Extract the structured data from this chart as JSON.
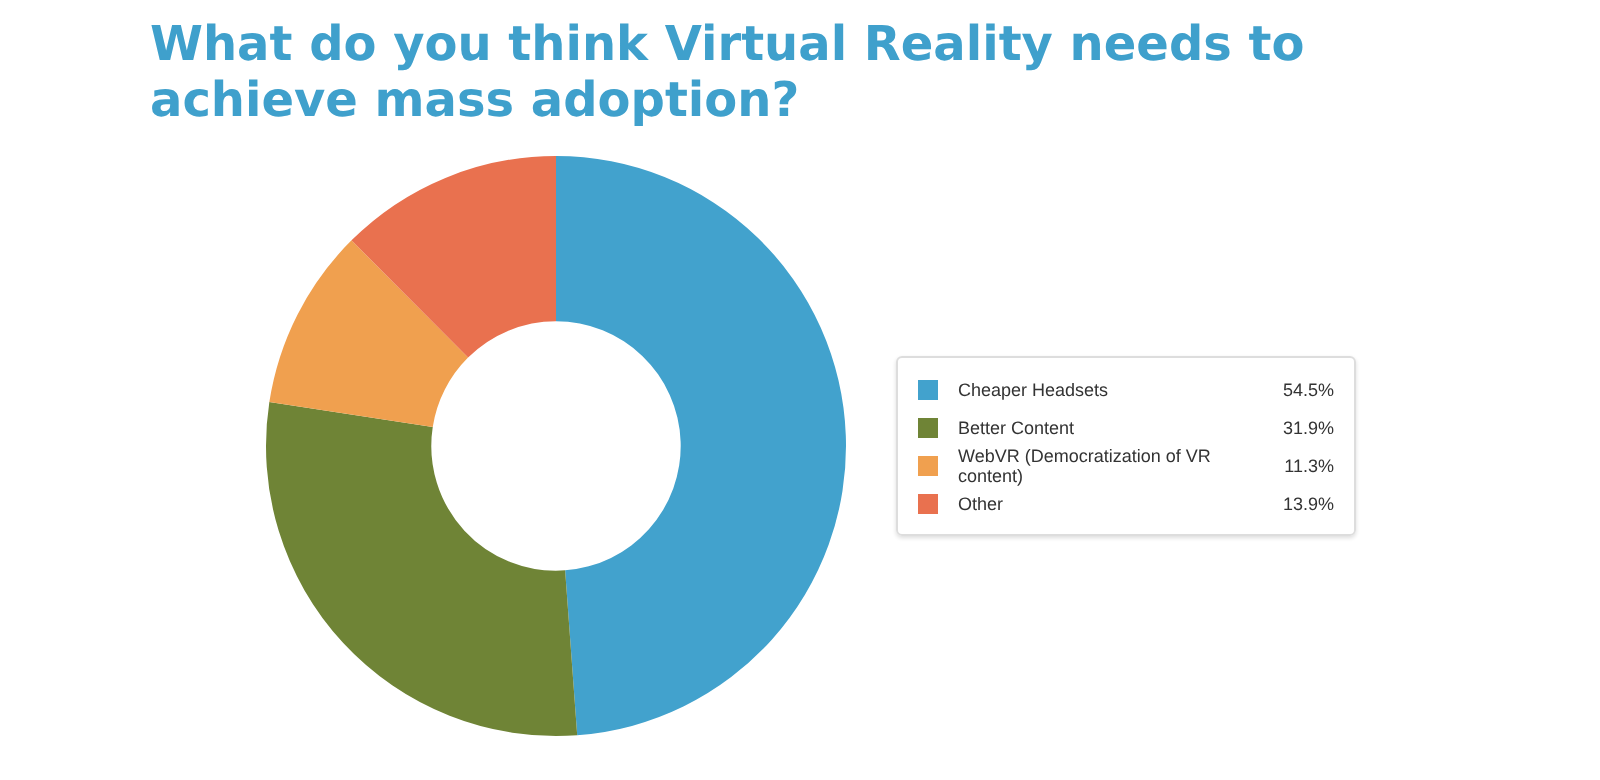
{
  "chart_data": {
    "type": "donut",
    "title": "What do you think Virtual Reality needs to achieve mass adoption?",
    "categories": [
      "Cheaper Headsets",
      "Better Content",
      "WebVR (Democratization of VR content)",
      "Other"
    ],
    "values": [
      54.5,
      31.9,
      11.3,
      13.9
    ],
    "value_labels": [
      "54.5%",
      "31.9%",
      "11.3%",
      "13.9%"
    ],
    "colors": [
      "#42a2cd",
      "#6f8436",
      "#f0a04f",
      "#e9714f"
    ],
    "legend": "right"
  }
}
